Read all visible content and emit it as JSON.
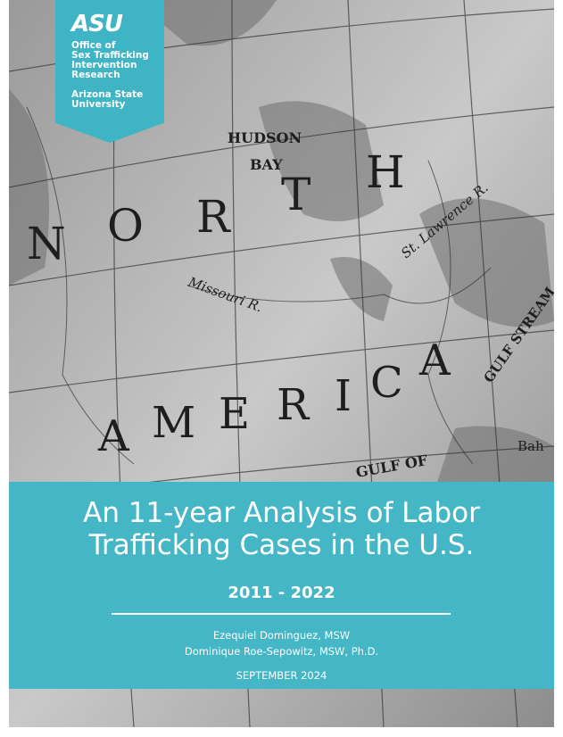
{
  "badge": {
    "logo": "ASU",
    "unit": [
      "Office of",
      "Sex Trafficking",
      "Intervention",
      "Research"
    ],
    "university": [
      "Arizona State",
      "University"
    ]
  },
  "map_labels": [
    "HUDSON",
    "BAY",
    "N",
    "O",
    "R",
    "T",
    "H",
    "A",
    "M",
    "E",
    "R",
    "I",
    "C",
    "A",
    "Missouri R.",
    "St. Lawrence R.",
    "GULF OF",
    "GULF STREAM",
    "Bah"
  ],
  "cover": {
    "title": [
      "An 11-year Analysis of Labor",
      "Trafficking Cases in the U.S."
    ],
    "years": "2011 - 2022",
    "authors": [
      "Ezequiel Dominguez, MSW",
      "Dominique Roe-Sepowitz, MSW, Ph.D."
    ],
    "date": "SEPTEMBER 2024"
  }
}
